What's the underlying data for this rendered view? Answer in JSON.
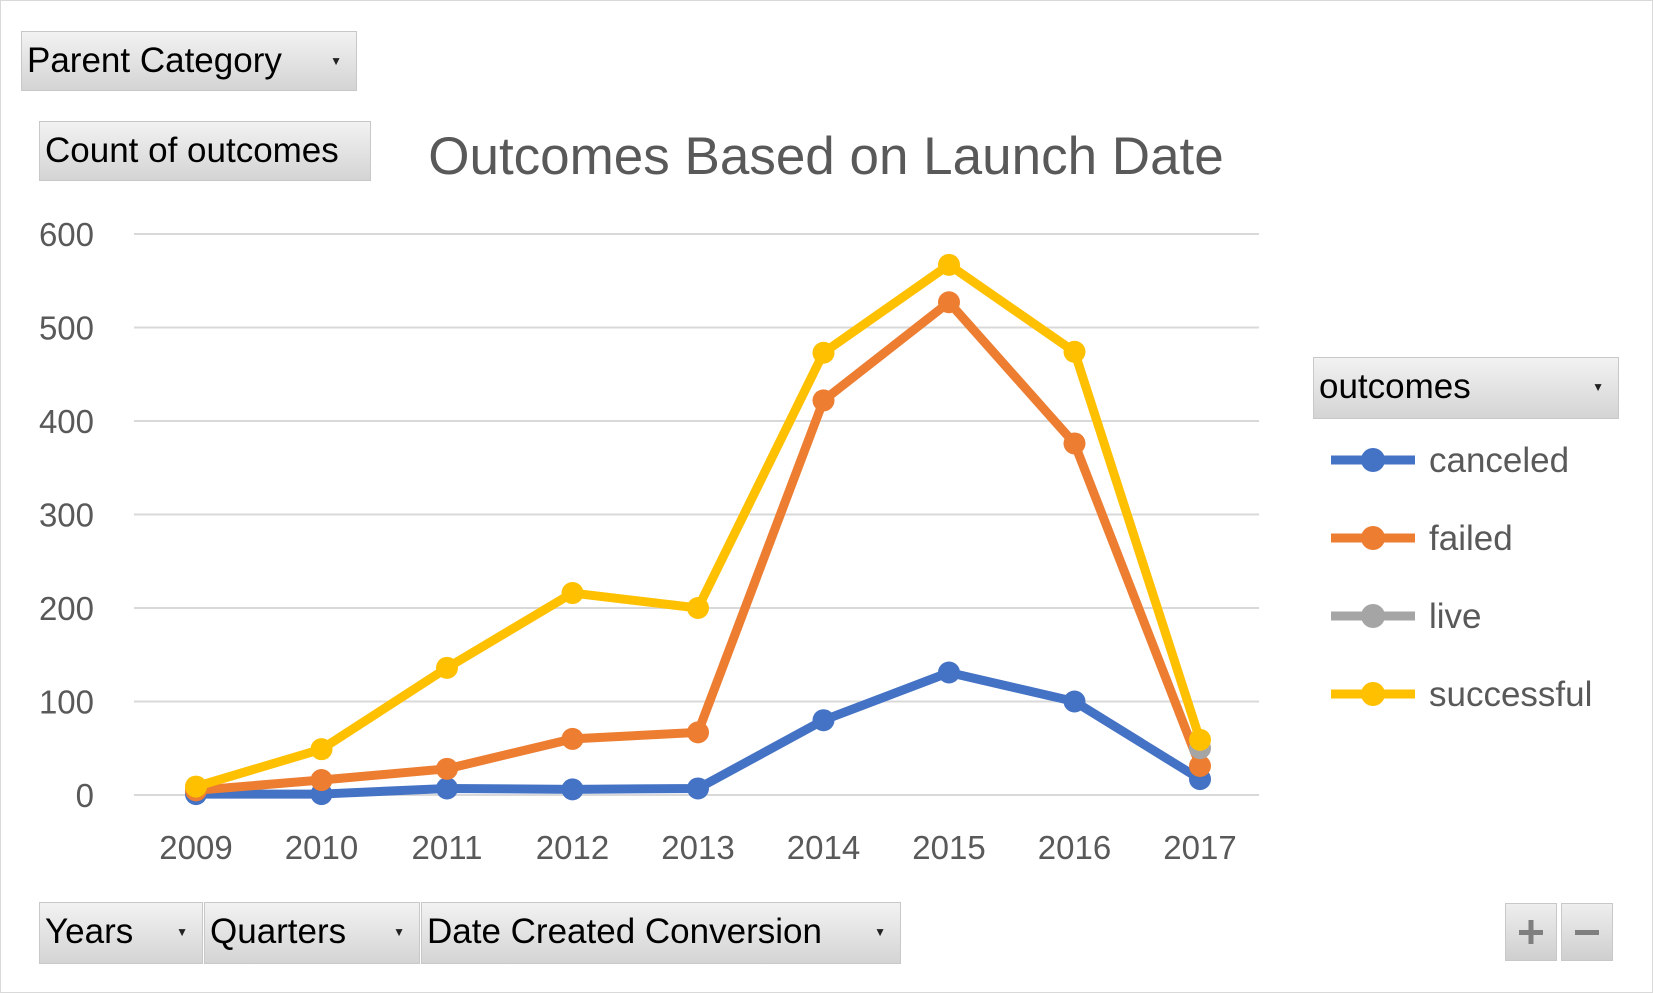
{
  "filters": {
    "parent_category": "Parent Category",
    "values_field": "Count of outcomes",
    "legend_field": "outcomes",
    "axis_fields": [
      "Years",
      "Quarters",
      "Date Created Conversion"
    ]
  },
  "colors": {
    "canceled": "#4472c4",
    "failed": "#ed7d31",
    "live": "#a5a5a5",
    "successful": "#ffc000",
    "grid": "#d9d9d9",
    "axis_text": "#595959"
  },
  "icons": {
    "zoom_in": "plus-icon",
    "zoom_out": "minus-icon",
    "dropdown": "chevron-down-icon"
  },
  "chart_data": {
    "type": "line",
    "title": "Outcomes Based on Launch Date",
    "xlabel": "",
    "ylabel": "",
    "categories": [
      "2009",
      "2010",
      "2011",
      "2012",
      "2013",
      "2014",
      "2015",
      "2016",
      "2017"
    ],
    "ylim": [
      0,
      600
    ],
    "yticks": [
      0,
      100,
      200,
      300,
      400,
      500,
      600
    ],
    "grid": true,
    "legend_position": "right",
    "series": [
      {
        "name": "canceled",
        "values": [
          1,
          1,
          7,
          6,
          7,
          80,
          131,
          100,
          17
        ]
      },
      {
        "name": "failed",
        "values": [
          5,
          16,
          28,
          60,
          67,
          422,
          527,
          376,
          31
        ]
      },
      {
        "name": "live",
        "values": [
          null,
          null,
          null,
          null,
          null,
          null,
          null,
          null,
          50
        ]
      },
      {
        "name": "successful",
        "values": [
          9,
          49,
          136,
          216,
          200,
          473,
          567,
          474,
          59
        ]
      }
    ]
  }
}
